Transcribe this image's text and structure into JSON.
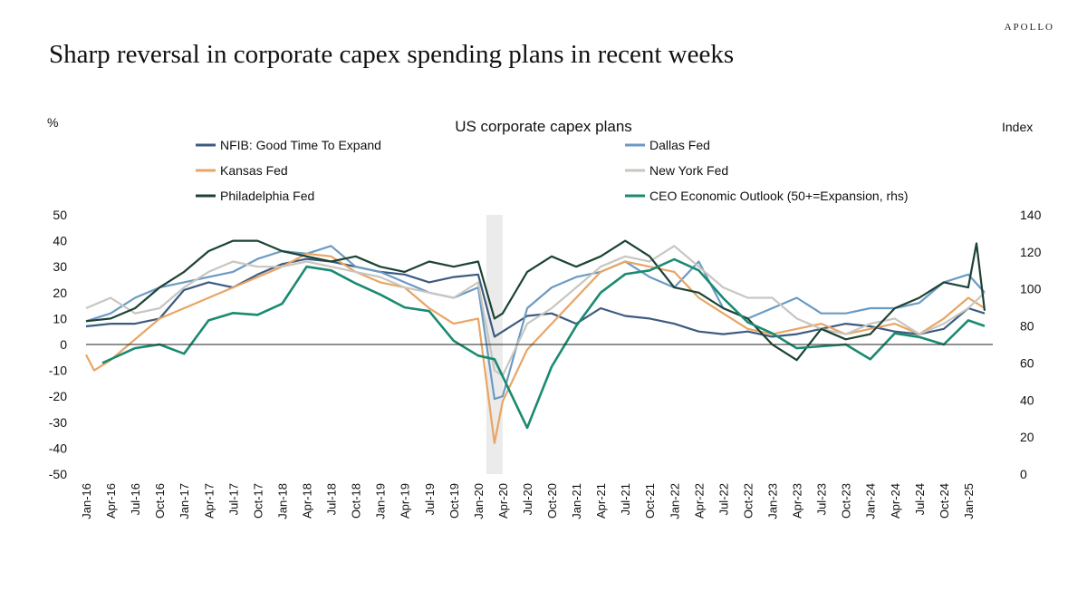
{
  "brand": "APOLLO",
  "headline": "Sharp reversal in corporate capex spending plans in recent weeks",
  "chart_data": {
    "type": "line",
    "title": "US corporate capex plans",
    "left_axis_label": "%",
    "right_axis_label": "Index",
    "left_ylim": [
      -50,
      50
    ],
    "right_ylim": [
      0,
      140
    ],
    "left_ticks": [
      50,
      40,
      30,
      20,
      10,
      0,
      -10,
      -20,
      -30,
      -40,
      -50
    ],
    "right_ticks": [
      140,
      120,
      100,
      80,
      60,
      40,
      20,
      0
    ],
    "x_range": [
      "Jan-16",
      "Apr-25"
    ],
    "x_ticks": [
      "Jan-16",
      "Apr-16",
      "Jul-16",
      "Oct-16",
      "Jan-17",
      "Apr-17",
      "Jul-17",
      "Oct-17",
      "Jan-18",
      "Apr-18",
      "Jul-18",
      "Oct-18",
      "Jan-19",
      "Apr-19",
      "Jul-19",
      "Oct-19",
      "Jan-20",
      "Apr-20",
      "Jul-20",
      "Oct-20",
      "Jan-21",
      "Apr-21",
      "Jul-21",
      "Oct-21",
      "Jan-22",
      "Apr-22",
      "Jul-22",
      "Oct-22",
      "Jan-23",
      "Apr-23",
      "Jul-23",
      "Oct-23",
      "Jan-24",
      "Apr-24",
      "Jul-24",
      "Oct-24",
      "Jan-25"
    ],
    "shaded_period": [
      "Feb-20",
      "Apr-20"
    ],
    "legend": "top, two columns",
    "grid": false,
    "series": [
      {
        "name": "NFIB: Good Time To Expand",
        "color": "#3d5a80",
        "axis": "left",
        "points": [
          [
            "Jan-16",
            7
          ],
          [
            "Apr-16",
            8
          ],
          [
            "Jul-16",
            8
          ],
          [
            "Oct-16",
            10
          ],
          [
            "Jan-17",
            21
          ],
          [
            "Apr-17",
            24
          ],
          [
            "Jul-17",
            22
          ],
          [
            "Oct-17",
            27
          ],
          [
            "Jan-18",
            31
          ],
          [
            "Apr-18",
            33
          ],
          [
            "Jul-18",
            32
          ],
          [
            "Oct-18",
            30
          ],
          [
            "Jan-19",
            28
          ],
          [
            "Apr-19",
            27
          ],
          [
            "Jul-19",
            24
          ],
          [
            "Oct-19",
            26
          ],
          [
            "Jan-20",
            27
          ],
          [
            "Mar-20",
            3
          ],
          [
            "Apr-20",
            5
          ],
          [
            "Jul-20",
            11
          ],
          [
            "Oct-20",
            12
          ],
          [
            "Jan-21",
            8
          ],
          [
            "Apr-21",
            14
          ],
          [
            "Jul-21",
            11
          ],
          [
            "Oct-21",
            10
          ],
          [
            "Jan-22",
            8
          ],
          [
            "Apr-22",
            5
          ],
          [
            "Jul-22",
            4
          ],
          [
            "Oct-22",
            5
          ],
          [
            "Jan-23",
            3
          ],
          [
            "Apr-23",
            4
          ],
          [
            "Jul-23",
            6
          ],
          [
            "Oct-23",
            8
          ],
          [
            "Jan-24",
            7
          ],
          [
            "Apr-24",
            5
          ],
          [
            "Jul-24",
            4
          ],
          [
            "Oct-24",
            6
          ],
          [
            "Jan-25",
            14
          ],
          [
            "Mar-25",
            12
          ]
        ]
      },
      {
        "name": "Dallas Fed",
        "color": "#6b9ac4",
        "axis": "left",
        "points": [
          [
            "Jan-16",
            9
          ],
          [
            "Apr-16",
            12
          ],
          [
            "Jul-16",
            18
          ],
          [
            "Oct-16",
            22
          ],
          [
            "Jan-17",
            24
          ],
          [
            "Apr-17",
            26
          ],
          [
            "Jul-17",
            28
          ],
          [
            "Oct-17",
            33
          ],
          [
            "Jan-18",
            36
          ],
          [
            "Apr-18",
            35
          ],
          [
            "Jul-18",
            38
          ],
          [
            "Oct-18",
            30
          ],
          [
            "Jan-19",
            28
          ],
          [
            "Apr-19",
            24
          ],
          [
            "Jul-19",
            20
          ],
          [
            "Oct-19",
            18
          ],
          [
            "Jan-20",
            22
          ],
          [
            "Mar-20",
            -21
          ],
          [
            "Apr-20",
            -20
          ],
          [
            "Jul-20",
            14
          ],
          [
            "Oct-20",
            22
          ],
          [
            "Jan-21",
            26
          ],
          [
            "Apr-21",
            28
          ],
          [
            "Jul-21",
            32
          ],
          [
            "Oct-21",
            26
          ],
          [
            "Jan-22",
            22
          ],
          [
            "Apr-22",
            32
          ],
          [
            "Jul-22",
            14
          ],
          [
            "Oct-22",
            10
          ],
          [
            "Jan-23",
            14
          ],
          [
            "Apr-23",
            18
          ],
          [
            "Jul-23",
            12
          ],
          [
            "Oct-23",
            12
          ],
          [
            "Jan-24",
            14
          ],
          [
            "Apr-24",
            14
          ],
          [
            "Jul-24",
            16
          ],
          [
            "Oct-24",
            24
          ],
          [
            "Jan-25",
            27
          ],
          [
            "Mar-25",
            20
          ]
        ]
      },
      {
        "name": "Kansas Fed",
        "color": "#e8a564",
        "axis": "left",
        "points": [
          [
            "Jan-16",
            -4
          ],
          [
            "Feb-16",
            -10
          ],
          [
            "Apr-16",
            -6
          ],
          [
            "Jul-16",
            2
          ],
          [
            "Oct-16",
            10
          ],
          [
            "Jan-17",
            14
          ],
          [
            "Apr-17",
            18
          ],
          [
            "Jul-17",
            22
          ],
          [
            "Oct-17",
            26
          ],
          [
            "Jan-18",
            30
          ],
          [
            "Apr-18",
            35
          ],
          [
            "Jul-18",
            34
          ],
          [
            "Oct-18",
            28
          ],
          [
            "Jan-19",
            24
          ],
          [
            "Apr-19",
            22
          ],
          [
            "Jul-19",
            14
          ],
          [
            "Oct-19",
            8
          ],
          [
            "Jan-20",
            10
          ],
          [
            "Mar-20",
            -38
          ],
          [
            "Apr-20",
            -22
          ],
          [
            "Jul-20",
            -2
          ],
          [
            "Oct-20",
            8
          ],
          [
            "Jan-21",
            18
          ],
          [
            "Apr-21",
            28
          ],
          [
            "Jul-21",
            32
          ],
          [
            "Oct-21",
            30
          ],
          [
            "Jan-22",
            28
          ],
          [
            "Apr-22",
            18
          ],
          [
            "Jul-22",
            12
          ],
          [
            "Oct-22",
            6
          ],
          [
            "Jan-23",
            4
          ],
          [
            "Apr-23",
            6
          ],
          [
            "Jul-23",
            8
          ],
          [
            "Oct-23",
            4
          ],
          [
            "Jan-24",
            6
          ],
          [
            "Apr-24",
            8
          ],
          [
            "Jul-24",
            4
          ],
          [
            "Oct-24",
            10
          ],
          [
            "Jan-25",
            18
          ],
          [
            "Mar-25",
            14
          ]
        ]
      },
      {
        "name": "New York Fed",
        "color": "#c8c6c0",
        "axis": "left",
        "points": [
          [
            "Jan-16",
            14
          ],
          [
            "Apr-16",
            18
          ],
          [
            "Jul-16",
            12
          ],
          [
            "Oct-16",
            14
          ],
          [
            "Jan-17",
            22
          ],
          [
            "Apr-17",
            28
          ],
          [
            "Jul-17",
            32
          ],
          [
            "Oct-17",
            30
          ],
          [
            "Jan-18",
            30
          ],
          [
            "Apr-18",
            32
          ],
          [
            "Jul-18",
            30
          ],
          [
            "Oct-18",
            28
          ],
          [
            "Jan-19",
            26
          ],
          [
            "Apr-19",
            22
          ],
          [
            "Jul-19",
            20
          ],
          [
            "Oct-19",
            18
          ],
          [
            "Jan-20",
            24
          ],
          [
            "Mar-20",
            -10
          ],
          [
            "Apr-20",
            -12
          ],
          [
            "Jul-20",
            8
          ],
          [
            "Oct-20",
            14
          ],
          [
            "Jan-21",
            22
          ],
          [
            "Apr-21",
            30
          ],
          [
            "Jul-21",
            34
          ],
          [
            "Oct-21",
            32
          ],
          [
            "Jan-22",
            38
          ],
          [
            "Apr-22",
            30
          ],
          [
            "Jul-22",
            22
          ],
          [
            "Oct-22",
            18
          ],
          [
            "Jan-23",
            18
          ],
          [
            "Apr-23",
            10
          ],
          [
            "Jul-23",
            6
          ],
          [
            "Oct-23",
            4
          ],
          [
            "Jan-24",
            8
          ],
          [
            "Apr-24",
            10
          ],
          [
            "Jul-24",
            4
          ],
          [
            "Oct-24",
            8
          ],
          [
            "Jan-25",
            14
          ],
          [
            "Mar-25",
            20
          ]
        ]
      },
      {
        "name": "Philadelphia Fed",
        "color": "#1c4332",
        "axis": "left",
        "points": [
          [
            "Jan-16",
            9
          ],
          [
            "Apr-16",
            10
          ],
          [
            "Jul-16",
            14
          ],
          [
            "Oct-16",
            22
          ],
          [
            "Jan-17",
            28
          ],
          [
            "Apr-17",
            36
          ],
          [
            "Jul-17",
            40
          ],
          [
            "Oct-17",
            40
          ],
          [
            "Jan-18",
            36
          ],
          [
            "Apr-18",
            34
          ],
          [
            "Jul-18",
            32
          ],
          [
            "Oct-18",
            34
          ],
          [
            "Jan-19",
            30
          ],
          [
            "Apr-19",
            28
          ],
          [
            "Jul-19",
            32
          ],
          [
            "Oct-19",
            30
          ],
          [
            "Jan-20",
            32
          ],
          [
            "Mar-20",
            10
          ],
          [
            "Apr-20",
            12
          ],
          [
            "Jul-20",
            28
          ],
          [
            "Oct-20",
            34
          ],
          [
            "Jan-21",
            30
          ],
          [
            "Apr-21",
            34
          ],
          [
            "Jul-21",
            40
          ],
          [
            "Oct-21",
            34
          ],
          [
            "Jan-22",
            22
          ],
          [
            "Apr-22",
            20
          ],
          [
            "Jul-22",
            14
          ],
          [
            "Oct-22",
            10
          ],
          [
            "Jan-23",
            0
          ],
          [
            "Apr-23",
            -6
          ],
          [
            "Jul-23",
            6
          ],
          [
            "Oct-23",
            2
          ],
          [
            "Jan-24",
            4
          ],
          [
            "Apr-24",
            14
          ],
          [
            "Jul-24",
            18
          ],
          [
            "Oct-24",
            24
          ],
          [
            "Jan-25",
            22
          ],
          [
            "Feb-25",
            39
          ],
          [
            "Mar-25",
            13
          ]
        ]
      },
      {
        "name": "CEO Economic Outlook (50+=Expansion, rhs)",
        "color": "#1a8a70",
        "axis": "right",
        "points": [
          [
            "Mar-16",
            60
          ],
          [
            "Jul-16",
            68
          ],
          [
            "Oct-16",
            70
          ],
          [
            "Jan-17",
            65
          ],
          [
            "Apr-17",
            83
          ],
          [
            "Jul-17",
            87
          ],
          [
            "Oct-17",
            86
          ],
          [
            "Jan-18",
            92
          ],
          [
            "Apr-18",
            112
          ],
          [
            "Jul-18",
            110
          ],
          [
            "Oct-18",
            103
          ],
          [
            "Jan-19",
            97
          ],
          [
            "Apr-19",
            90
          ],
          [
            "Jul-19",
            88
          ],
          [
            "Oct-19",
            72
          ],
          [
            "Jan-20",
            64
          ],
          [
            "Mar-20",
            62
          ],
          [
            "Jul-20",
            25
          ],
          [
            "Oct-20",
            58
          ],
          [
            "Jan-21",
            80
          ],
          [
            "Apr-21",
            98
          ],
          [
            "Jul-21",
            108
          ],
          [
            "Oct-21",
            110
          ],
          [
            "Jan-22",
            116
          ],
          [
            "Apr-22",
            110
          ],
          [
            "Jul-22",
            95
          ],
          [
            "Oct-22",
            82
          ],
          [
            "Jan-23",
            76
          ],
          [
            "Apr-23",
            68
          ],
          [
            "Jul-23",
            69
          ],
          [
            "Oct-23",
            70
          ],
          [
            "Jan-24",
            62
          ],
          [
            "Apr-24",
            76
          ],
          [
            "Jul-24",
            74
          ],
          [
            "Oct-24",
            70
          ],
          [
            "Jan-25",
            83
          ],
          [
            "Mar-25",
            80
          ]
        ]
      }
    ]
  }
}
